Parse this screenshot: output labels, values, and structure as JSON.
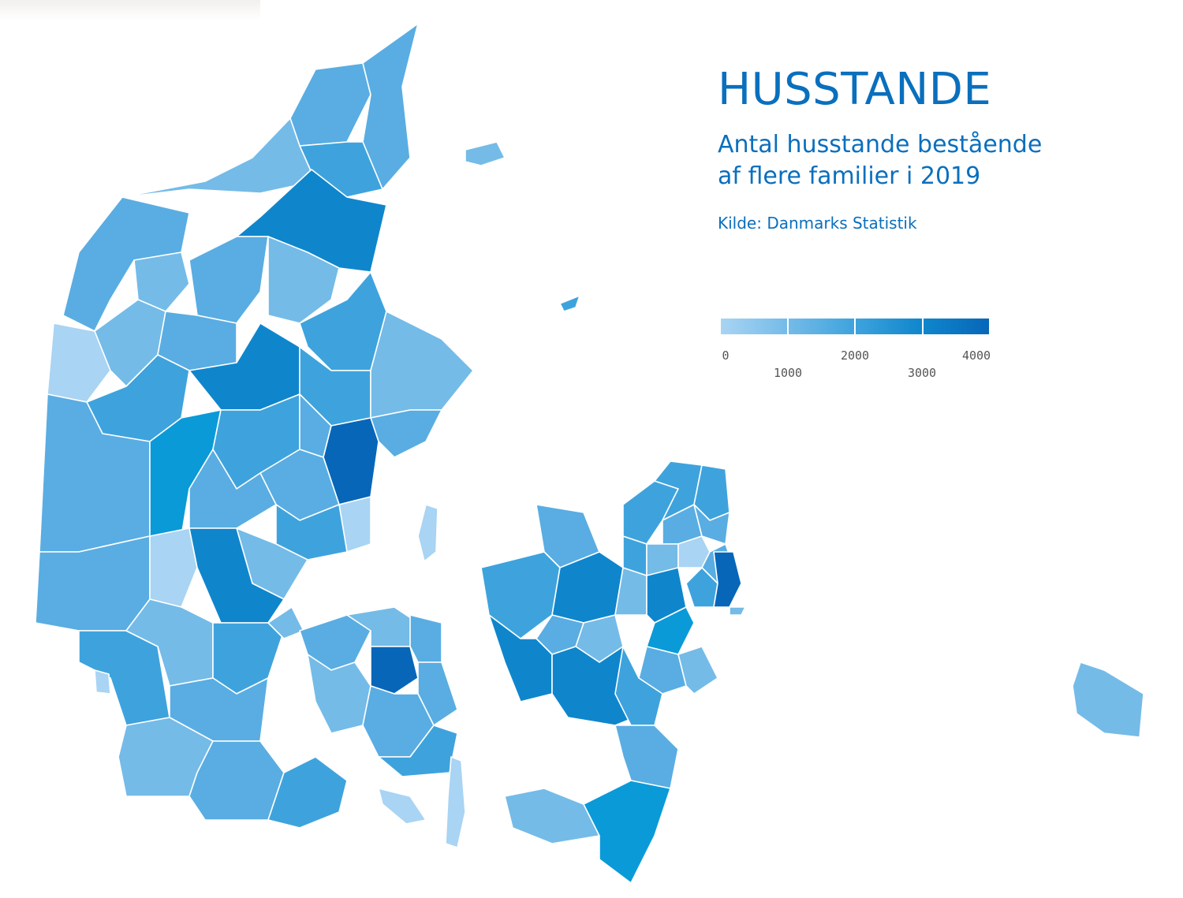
{
  "title": "HUSSTANDE",
  "subtitle_line1": "Antal husstande bestående",
  "subtitle_line2": "af flere familier i 2019",
  "source": "Kilde: Danmarks Statistik",
  "legend": {
    "colors": [
      "#a9d4f3",
      "#74bbe8",
      "#3ea3dd",
      "#0f86cc",
      "#0766b8"
    ],
    "ticks": [
      {
        "label": "0",
        "value": 0,
        "row": 1
      },
      {
        "label": "1000",
        "value": 1000,
        "row": 2
      },
      {
        "label": "2000",
        "value": 2000,
        "row": 1
      },
      {
        "label": "3000",
        "value": 3000,
        "row": 2
      },
      {
        "label": "4000",
        "value": 4000,
        "row": 1
      }
    ],
    "min": 0,
    "max": 4000
  },
  "map": {
    "water_color": "#ffffff",
    "island_laeso_color": "#74bbe8",
    "island_anholt_color": "#3ea3dd",
    "island_bornholm_color": "#74bbe8"
  }
}
